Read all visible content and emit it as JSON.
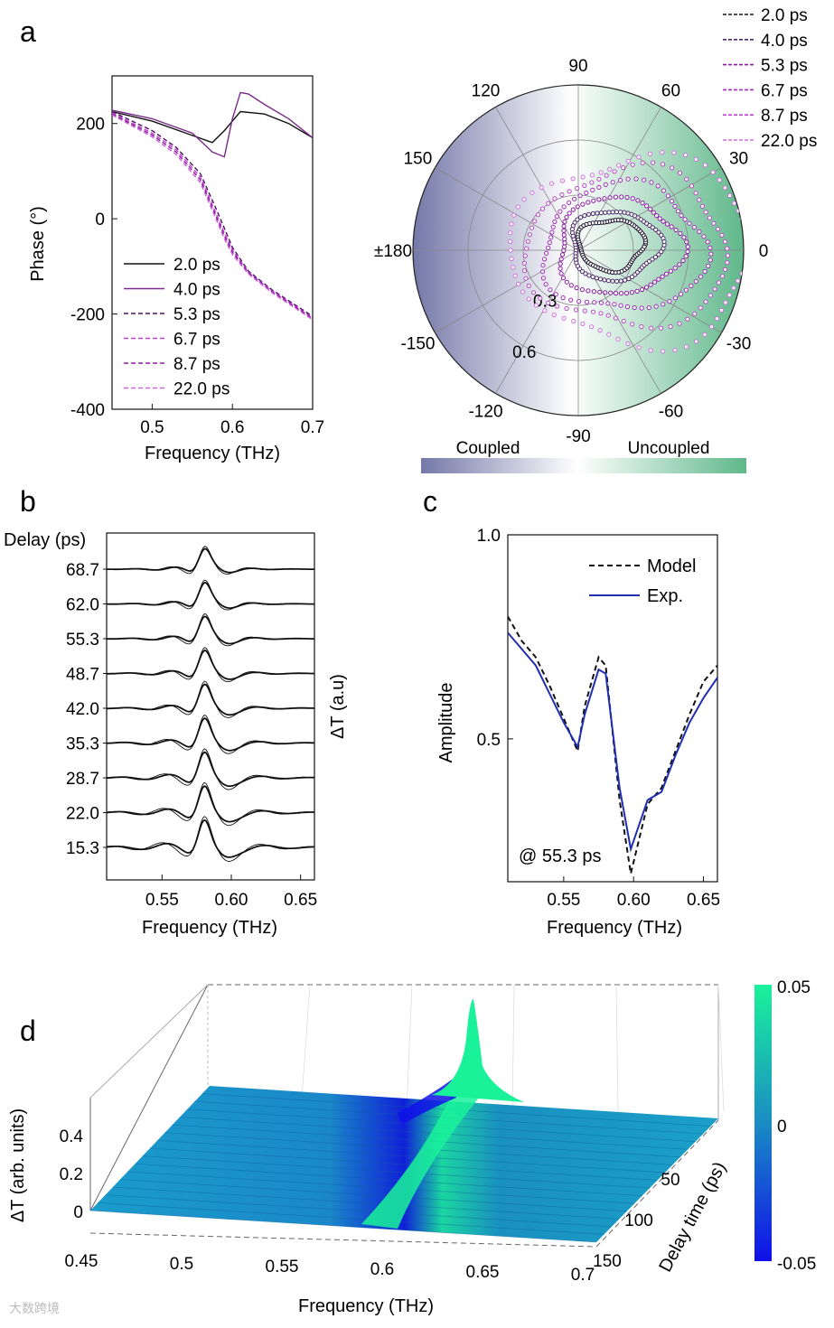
{
  "panel_labels": {
    "a": "a",
    "b": "b",
    "c": "c",
    "d": "d"
  },
  "watermark": "大数跨境",
  "chart_data": [
    {
      "id": "a_phase",
      "type": "line",
      "xlabel": "Frequency (THz)",
      "ylabel": "Phase (°)",
      "xlim": [
        0.45,
        0.7
      ],
      "ylim": [
        -400,
        300
      ],
      "xticks": [
        "0.5",
        "0.6",
        "0.7"
      ],
      "yticks": [
        "200",
        "0",
        "-200",
        "-400"
      ],
      "legend": [
        "2.0 ps",
        "4.0 ps",
        "5.3 ps",
        "6.7 ps",
        "8.7 ps",
        "22.0 ps"
      ],
      "series": [
        {
          "name": "2.0 ps",
          "style": "solid",
          "color": "#111111",
          "x": [
            0.45,
            0.5,
            0.55,
            0.575,
            0.59,
            0.61,
            0.64,
            0.67,
            0.7
          ],
          "y": [
            225,
            205,
            175,
            160,
            185,
            225,
            220,
            200,
            170
          ]
        },
        {
          "name": "4.0 ps",
          "style": "solid",
          "color": "#7a2a8a",
          "x": [
            0.45,
            0.5,
            0.55,
            0.575,
            0.59,
            0.6,
            0.61,
            0.62,
            0.64,
            0.67,
            0.7
          ],
          "y": [
            228,
            210,
            180,
            140,
            130,
            210,
            265,
            262,
            240,
            210,
            170
          ]
        },
        {
          "name": "5.3 ps",
          "style": "dashed",
          "color": "#4b1060",
          "x": [
            0.45,
            0.5,
            0.53,
            0.56,
            0.58,
            0.59,
            0.6,
            0.62,
            0.65,
            0.7
          ],
          "y": [
            225,
            185,
            150,
            95,
            20,
            -20,
            -60,
            -110,
            -150,
            -205
          ]
        },
        {
          "name": "6.7 ps",
          "style": "dashed",
          "color": "#c040d0",
          "x": [
            0.45,
            0.5,
            0.53,
            0.56,
            0.58,
            0.59,
            0.6,
            0.62,
            0.65,
            0.7
          ],
          "y": [
            222,
            180,
            145,
            88,
            10,
            -30,
            -65,
            -112,
            -152,
            -208
          ]
        },
        {
          "name": "8.7 ps",
          "style": "dashed",
          "color": "#8a1aa0",
          "x": [
            0.45,
            0.5,
            0.53,
            0.56,
            0.58,
            0.59,
            0.6,
            0.62,
            0.65,
            0.7
          ],
          "y": [
            220,
            176,
            140,
            82,
            4,
            -36,
            -70,
            -114,
            -154,
            -210
          ]
        },
        {
          "name": "22.0 ps",
          "style": "dashed",
          "color": "#d060e0",
          "x": [
            0.45,
            0.5,
            0.53,
            0.56,
            0.58,
            0.59,
            0.6,
            0.62,
            0.65,
            0.7
          ],
          "y": [
            218,
            172,
            135,
            76,
            -2,
            -42,
            -75,
            -116,
            -156,
            -212
          ]
        }
      ]
    },
    {
      "id": "a_polar",
      "type": "scatter",
      "angle_labels": [
        "90",
        "60",
        "30",
        "0",
        "-30",
        "-60",
        "-90",
        "-120",
        "-150",
        "±180",
        "150",
        "120"
      ],
      "radial_ticks": [
        "0.3",
        "0.6"
      ],
      "radial_max": 0.9,
      "legend": [
        "2.0 ps",
        "4.0 ps",
        "5.3 ps",
        "6.7 ps",
        "8.7 ps",
        "22.0 ps"
      ],
      "colorbar_labels": [
        "Coupled",
        "Uncoupled"
      ],
      "colors": {
        "coupled": "#7478a8",
        "uncoupled": "#5fb88a"
      },
      "loops": [
        {
          "name": "2.0 ps",
          "color": "#1a0f2a",
          "center": [
            0.18,
            10
          ],
          "radius": 0.17
        },
        {
          "name": "4.0 ps",
          "color": "#4b2a6a",
          "center": [
            0.2,
            8
          ],
          "radius": 0.23
        },
        {
          "name": "5.3 ps",
          "color": "#8a1aa0",
          "center": [
            0.22,
            5
          ],
          "radius": 0.32
        },
        {
          "name": "6.7 ps",
          "color": "#a030b8",
          "center": [
            0.25,
            3
          ],
          "radius": 0.42
        },
        {
          "name": "8.7 ps",
          "color": "#b848c8",
          "center": [
            0.27,
            2
          ],
          "radius": 0.52
        },
        {
          "name": "22.0 ps",
          "color": "#d070e0",
          "center": [
            0.3,
            0
          ],
          "radius": 0.62
        }
      ]
    },
    {
      "id": "b_waterfall",
      "type": "line",
      "xlabel": "Frequency (THz)",
      "ylabel": "ΔT (a.u)",
      "y_header": "Delay (ps)",
      "xlim": [
        0.51,
        0.66
      ],
      "xticks": [
        "0.55",
        "0.60",
        "0.65"
      ],
      "delays": [
        "68.7",
        "62.0",
        "55.3",
        "48.7",
        "42.0",
        "35.3",
        "28.7",
        "22.0",
        "15.3"
      ],
      "resonance_thz": 0.58
    },
    {
      "id": "c_amplitude",
      "type": "line",
      "xlabel": "Frequency (THz)",
      "ylabel": "Amplitude",
      "xlim": [
        0.51,
        0.66
      ],
      "ylim": [
        0.15,
        1.0
      ],
      "xticks": [
        "0.55",
        "0.60",
        "0.65"
      ],
      "yticks": [
        "1.0",
        "0.5"
      ],
      "annotation": "@ 55.3 ps",
      "series": [
        {
          "name": "Model",
          "style": "dashed",
          "color": "#111111",
          "x": [
            0.51,
            0.52,
            0.53,
            0.54,
            0.55,
            0.56,
            0.565,
            0.575,
            0.58,
            0.59,
            0.598,
            0.61,
            0.62,
            0.63,
            0.64,
            0.65,
            0.66
          ],
          "y": [
            0.8,
            0.74,
            0.7,
            0.63,
            0.55,
            0.47,
            0.58,
            0.7,
            0.68,
            0.35,
            0.17,
            0.34,
            0.38,
            0.47,
            0.56,
            0.64,
            0.68
          ]
        },
        {
          "name": "Exp.",
          "style": "solid",
          "color": "#1f2fb0",
          "x": [
            0.51,
            0.52,
            0.53,
            0.54,
            0.55,
            0.56,
            0.565,
            0.575,
            0.58,
            0.59,
            0.598,
            0.61,
            0.62,
            0.63,
            0.64,
            0.65,
            0.66
          ],
          "y": [
            0.76,
            0.72,
            0.68,
            0.61,
            0.54,
            0.48,
            0.56,
            0.67,
            0.66,
            0.38,
            0.23,
            0.35,
            0.37,
            0.46,
            0.54,
            0.6,
            0.65
          ]
        }
      ]
    },
    {
      "id": "d_surface",
      "type": "heatmap",
      "xlabel": "Frequency (THz)",
      "ylabel": "Delay time (ps)",
      "zlabel": "ΔT (arb. units)",
      "xticks": [
        "0.45",
        "0.5",
        "0.55",
        "0.6",
        "0.65",
        "0.7"
      ],
      "yticks": [
        "50",
        "100",
        "150"
      ],
      "zticks": [
        "0",
        "0.2",
        "0.4"
      ],
      "colorbar_ticks": [
        "0.05",
        "0",
        "-0.05"
      ],
      "colors": {
        "high": "#1af29a",
        "mid": "#1a8cc4",
        "low": "#1010e8"
      }
    }
  ]
}
